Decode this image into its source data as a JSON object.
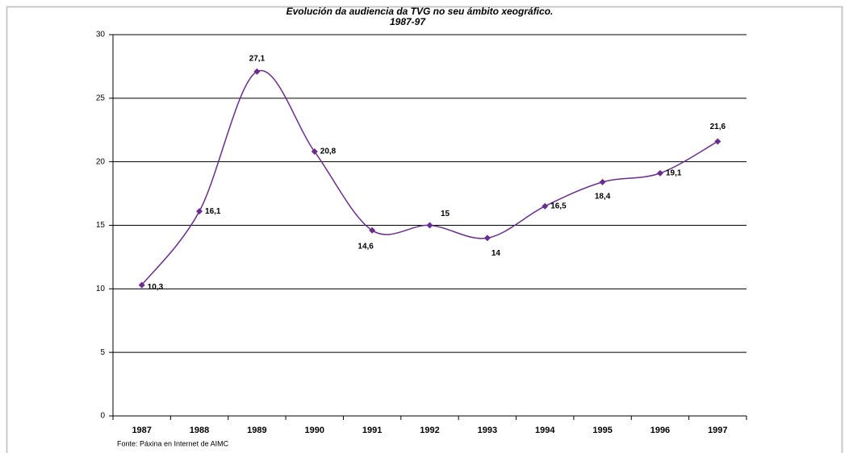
{
  "chart_data": {
    "type": "line",
    "title": "Evolución da audiencia da TVG no seu ámbito xeográfico.",
    "subtitle": "1987-97",
    "source": "Fonte: Páxina en Internet de AIMC",
    "categories": [
      "1987",
      "1988",
      "1989",
      "1990",
      "1991",
      "1992",
      "1993",
      "1994",
      "1995",
      "1996",
      "1997"
    ],
    "series": [
      {
        "color": "#6b2c8f",
        "values": [
          10.3,
          16.1,
          27.1,
          20.8,
          14.6,
          15,
          14,
          16.5,
          18.4,
          19.1,
          21.6
        ],
        "value_labels": [
          "10,3",
          "16,1",
          "27,1",
          "20,8",
          "14,6",
          "15",
          "14",
          "16,5",
          "18,4",
          "19,1",
          "21,6"
        ]
      }
    ],
    "ylim": [
      0,
      30
    ],
    "yticks": [
      0,
      5,
      10,
      15,
      20,
      25,
      30
    ],
    "grid": true,
    "smooth": true
  }
}
